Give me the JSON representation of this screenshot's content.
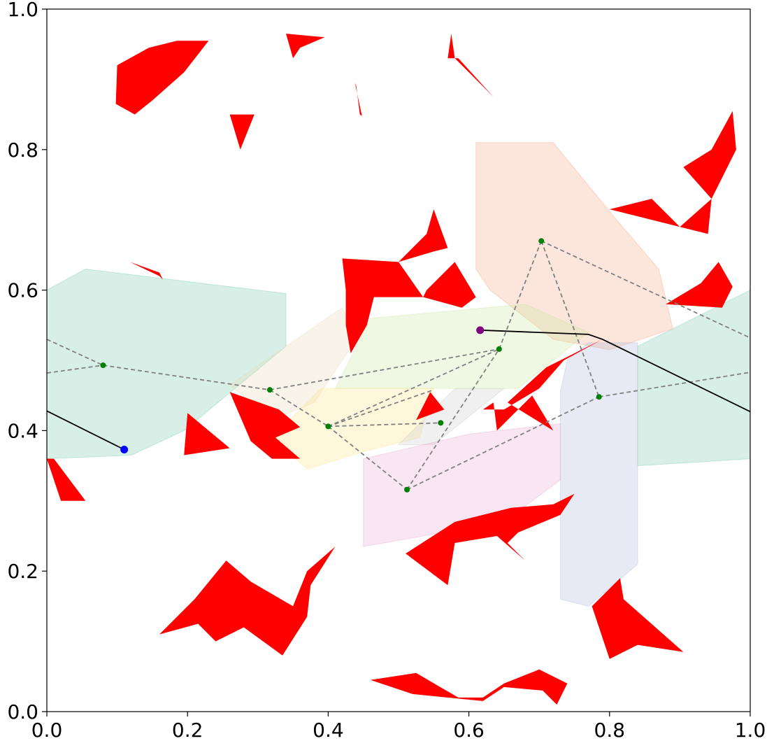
{
  "chart_data": {
    "type": "scatter",
    "title": "",
    "xlabel": "",
    "ylabel": "",
    "xlim": [
      0.0,
      1.0
    ],
    "ylim": [
      0.0,
      1.0
    ],
    "grid": false,
    "x_ticks": [
      "0.0",
      "0.2",
      "0.4",
      "0.6",
      "0.8",
      "1.0"
    ],
    "y_ticks": [
      "0.0",
      "0.2",
      "0.4",
      "0.6",
      "0.8",
      "1.0"
    ],
    "colors": {
      "obstacle": "#ff0000",
      "start": "#0000ff",
      "goal": "#800080",
      "waypoint": "#008000",
      "graph_edge": "#808080",
      "path": "#000000"
    },
    "regions": [
      {
        "color": "#6fc6a6",
        "points": [
          [
            0.0,
            0.6
          ],
          [
            0.055,
            0.63
          ],
          [
            0.34,
            0.595
          ],
          [
            0.34,
            0.52
          ],
          [
            0.195,
            0.4
          ],
          [
            0.12,
            0.365
          ],
          [
            0.0,
            0.36
          ]
        ]
      },
      {
        "color": "#6fc6a6",
        "points": [
          [
            0.84,
            0.35
          ],
          [
            1.0,
            0.36
          ],
          [
            1.0,
            0.6
          ],
          [
            0.84,
            0.52
          ]
        ]
      },
      {
        "color": "#f6a07c",
        "points": [
          [
            0.61,
            0.81
          ],
          [
            0.72,
            0.81
          ],
          [
            0.81,
            0.7
          ],
          [
            0.87,
            0.63
          ],
          [
            0.89,
            0.545
          ],
          [
            0.8,
            0.515
          ],
          [
            0.72,
            0.53
          ],
          [
            0.63,
            0.6
          ],
          [
            0.61,
            0.63
          ]
        ]
      },
      {
        "color": "#e9d6b5",
        "points": [
          [
            0.26,
            0.465
          ],
          [
            0.42,
            0.575
          ],
          [
            0.44,
            0.53
          ],
          [
            0.38,
            0.44
          ],
          [
            0.32,
            0.415
          ]
        ]
      },
      {
        "color": "#c5e59a",
        "points": [
          [
            0.41,
            0.46
          ],
          [
            0.46,
            0.56
          ],
          [
            0.68,
            0.58
          ],
          [
            0.77,
            0.54
          ],
          [
            0.67,
            0.46
          ]
        ]
      },
      {
        "color": "#fbe27f",
        "points": [
          [
            0.32,
            0.39
          ],
          [
            0.39,
            0.46
          ],
          [
            0.55,
            0.46
          ],
          [
            0.53,
            0.39
          ],
          [
            0.45,
            0.37
          ],
          [
            0.37,
            0.345
          ]
        ]
      },
      {
        "color": "#c8c8c8",
        "points": [
          [
            0.5,
            0.38
          ],
          [
            0.58,
            0.46
          ],
          [
            0.65,
            0.46
          ],
          [
            0.55,
            0.38
          ]
        ]
      },
      {
        "color": "#e6a4d0",
        "points": [
          [
            0.45,
            0.36
          ],
          [
            0.6,
            0.395
          ],
          [
            0.73,
            0.41
          ],
          [
            0.73,
            0.33
          ],
          [
            0.65,
            0.27
          ],
          [
            0.45,
            0.235
          ]
        ]
      },
      {
        "color": "#aab4d9",
        "points": [
          [
            0.73,
            0.455
          ],
          [
            0.74,
            0.5
          ],
          [
            0.77,
            0.525
          ],
          [
            0.84,
            0.525
          ],
          [
            0.84,
            0.21
          ],
          [
            0.77,
            0.15
          ],
          [
            0.73,
            0.16
          ]
        ]
      }
    ],
    "obstacles": [
      [
        [
          0.1,
          0.92
        ],
        [
          0.145,
          0.945
        ],
        [
          0.185,
          0.955
        ],
        [
          0.23,
          0.955
        ],
        [
          0.195,
          0.91
        ],
        [
          0.15,
          0.87
        ],
        [
          0.125,
          0.85
        ],
        [
          0.098,
          0.865
        ]
      ],
      [
        [
          0.34,
          0.965
        ],
        [
          0.395,
          0.96
        ],
        [
          0.36,
          0.945
        ],
        [
          0.35,
          0.93
        ]
      ],
      [
        [
          0.575,
          0.965
        ],
        [
          0.58,
          0.93
        ],
        [
          0.635,
          0.875
        ],
        [
          0.585,
          0.93
        ],
        [
          0.57,
          0.93
        ]
      ],
      [
        [
          0.438,
          0.895
        ],
        [
          0.448,
          0.848
        ],
        [
          0.445,
          0.85
        ],
        [
          0.44,
          0.89
        ]
      ],
      [
        [
          0.26,
          0.85
        ],
        [
          0.295,
          0.85
        ],
        [
          0.275,
          0.8
        ]
      ],
      [
        [
          0.118,
          0.64
        ],
        [
          0.16,
          0.62
        ],
        [
          0.165,
          0.615
        ],
        [
          0.16,
          0.625
        ]
      ],
      [
        [
          0.42,
          0.645
        ],
        [
          0.5,
          0.64
        ],
        [
          0.54,
          0.68
        ],
        [
          0.55,
          0.715
        ],
        [
          0.57,
          0.66
        ],
        [
          0.55,
          0.655
        ],
        [
          0.5,
          0.64
        ],
        [
          0.535,
          0.59
        ],
        [
          0.54,
          0.6
        ],
        [
          0.58,
          0.64
        ],
        [
          0.61,
          0.59
        ],
        [
          0.59,
          0.575
        ],
        [
          0.535,
          0.59
        ],
        [
          0.465,
          0.59
        ],
        [
          0.455,
          0.55
        ],
        [
          0.432,
          0.51
        ],
        [
          0.425,
          0.55
        ],
        [
          0.425,
          0.6
        ]
      ],
      [
        [
          0.8,
          0.715
        ],
        [
          0.86,
          0.73
        ],
        [
          0.9,
          0.69
        ],
        [
          0.94,
          0.68
        ],
        [
          0.945,
          0.73
        ],
        [
          0.9,
          0.69
        ]
      ],
      [
        [
          0.905,
          0.775
        ],
        [
          0.945,
          0.8
        ],
        [
          0.975,
          0.855
        ],
        [
          0.98,
          0.8
        ],
        [
          0.945,
          0.73
        ]
      ],
      [
        [
          0.88,
          0.58
        ],
        [
          0.93,
          0.61
        ],
        [
          0.955,
          0.64
        ],
        [
          0.975,
          0.605
        ],
        [
          0.96,
          0.575
        ]
      ],
      [
        [
          0.0,
          0.36
        ],
        [
          0.01,
          0.36
        ],
        [
          0.055,
          0.3
        ],
        [
          0.02,
          0.3
        ]
      ],
      [
        [
          0.195,
          0.365
        ],
        [
          0.2,
          0.425
        ],
        [
          0.26,
          0.375
        ]
      ],
      [
        [
          0.26,
          0.455
        ],
        [
          0.33,
          0.43
        ],
        [
          0.36,
          0.405
        ],
        [
          0.325,
          0.39
        ],
        [
          0.36,
          0.36
        ],
        [
          0.32,
          0.36
        ],
        [
          0.29,
          0.385
        ]
      ],
      [
        [
          0.525,
          0.415
        ],
        [
          0.565,
          0.43
        ],
        [
          0.545,
          0.455
        ]
      ],
      [
        [
          0.62,
          0.43
        ],
        [
          0.65,
          0.43
        ],
        [
          0.7,
          0.46
        ],
        [
          0.735,
          0.5
        ],
        [
          0.79,
          0.53
        ],
        [
          0.71,
          0.49
        ],
        [
          0.655,
          0.44
        ],
        [
          0.72,
          0.4
        ],
        [
          0.69,
          0.45
        ],
        [
          0.64,
          0.4
        ],
        [
          0.635,
          0.44
        ]
      ],
      [
        [
          0.51,
          0.225
        ],
        [
          0.58,
          0.27
        ],
        [
          0.66,
          0.29
        ],
        [
          0.72,
          0.295
        ],
        [
          0.75,
          0.31
        ],
        [
          0.73,
          0.28
        ],
        [
          0.67,
          0.255
        ],
        [
          0.655,
          0.24
        ],
        [
          0.68,
          0.215
        ],
        [
          0.64,
          0.25
        ],
        [
          0.58,
          0.24
        ],
        [
          0.57,
          0.18
        ]
      ],
      [
        [
          0.16,
          0.11
        ],
        [
          0.21,
          0.16
        ],
        [
          0.255,
          0.215
        ],
        [
          0.29,
          0.185
        ],
        [
          0.35,
          0.15
        ],
        [
          0.37,
          0.2
        ],
        [
          0.41,
          0.235
        ],
        [
          0.375,
          0.18
        ],
        [
          0.37,
          0.135
        ],
        [
          0.335,
          0.08
        ],
        [
          0.28,
          0.12
        ],
        [
          0.24,
          0.1
        ],
        [
          0.215,
          0.125
        ]
      ],
      [
        [
          0.775,
          0.15
        ],
        [
          0.815,
          0.19
        ],
        [
          0.82,
          0.16
        ],
        [
          0.905,
          0.085
        ],
        [
          0.84,
          0.095
        ],
        [
          0.8,
          0.075
        ]
      ],
      [
        [
          0.46,
          0.045
        ],
        [
          0.525,
          0.055
        ],
        [
          0.585,
          0.02
        ],
        [
          0.62,
          0.02
        ],
        [
          0.65,
          0.04
        ],
        [
          0.7,
          0.06
        ],
        [
          0.74,
          0.04
        ],
        [
          0.725,
          0.01
        ],
        [
          0.705,
          0.03
        ],
        [
          0.65,
          0.035
        ],
        [
          0.62,
          0.015
        ],
        [
          0.52,
          0.025
        ]
      ]
    ],
    "graph_nodes": [
      [
        0.08,
        0.493
      ],
      [
        0.317,
        0.458
      ],
      [
        0.4,
        0.406
      ],
      [
        0.56,
        0.411
      ],
      [
        0.512,
        0.316
      ],
      [
        0.643,
        0.516
      ],
      [
        0.703,
        0.67
      ],
      [
        0.785,
        0.448
      ]
    ],
    "graph_edges": [
      [
        [
          0.0,
          0.53
        ],
        [
          0.08,
          0.493
        ]
      ],
      [
        [
          0.0,
          0.482
        ],
        [
          0.08,
          0.493
        ]
      ],
      [
        [
          0.08,
          0.493
        ],
        [
          0.317,
          0.458
        ]
      ],
      [
        [
          0.317,
          0.458
        ],
        [
          0.4,
          0.406
        ]
      ],
      [
        [
          0.317,
          0.458
        ],
        [
          0.643,
          0.516
        ]
      ],
      [
        [
          0.4,
          0.406
        ],
        [
          0.56,
          0.411
        ]
      ],
      [
        [
          0.4,
          0.406
        ],
        [
          0.512,
          0.316
        ]
      ],
      [
        [
          0.4,
          0.406
        ],
        [
          0.55,
          0.458
        ]
      ],
      [
        [
          0.4,
          0.406
        ],
        [
          0.643,
          0.516
        ]
      ],
      [
        [
          0.512,
          0.316
        ],
        [
          0.643,
          0.516
        ]
      ],
      [
        [
          0.512,
          0.316
        ],
        [
          0.785,
          0.448
        ]
      ],
      [
        [
          0.643,
          0.516
        ],
        [
          0.703,
          0.67
        ]
      ],
      [
        [
          0.703,
          0.67
        ],
        [
          0.785,
          0.448
        ]
      ],
      [
        [
          0.703,
          0.67
        ],
        [
          1.0,
          0.532
        ]
      ],
      [
        [
          0.785,
          0.448
        ],
        [
          1.0,
          0.483
        ]
      ]
    ],
    "paths": [
      [
        [
          0.0,
          0.428
        ],
        [
          0.11,
          0.373
        ]
      ],
      [
        [
          0.616,
          0.543
        ],
        [
          0.77,
          0.537
        ],
        [
          0.79,
          0.53
        ],
        [
          1.0,
          0.427
        ]
      ]
    ],
    "start": [
      0.11,
      0.373
    ],
    "goal": [
      0.616,
      0.543
    ]
  }
}
